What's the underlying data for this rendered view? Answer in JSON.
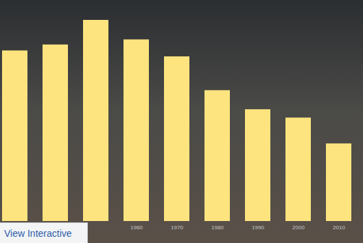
{
  "chart_data": {
    "type": "bar",
    "categories": [
      null,
      null,
      null,
      "1960",
      "1970",
      "1980",
      "1990",
      "2000",
      "2010"
    ],
    "values": [
      1568662,
      1623452,
      1849568,
      1670144,
      1514063,
      1203339,
      1027974,
      951270,
      713777
    ],
    "color": "#fde47f",
    "tick_labels": "x",
    "annotation": "View Interactive"
  }
}
